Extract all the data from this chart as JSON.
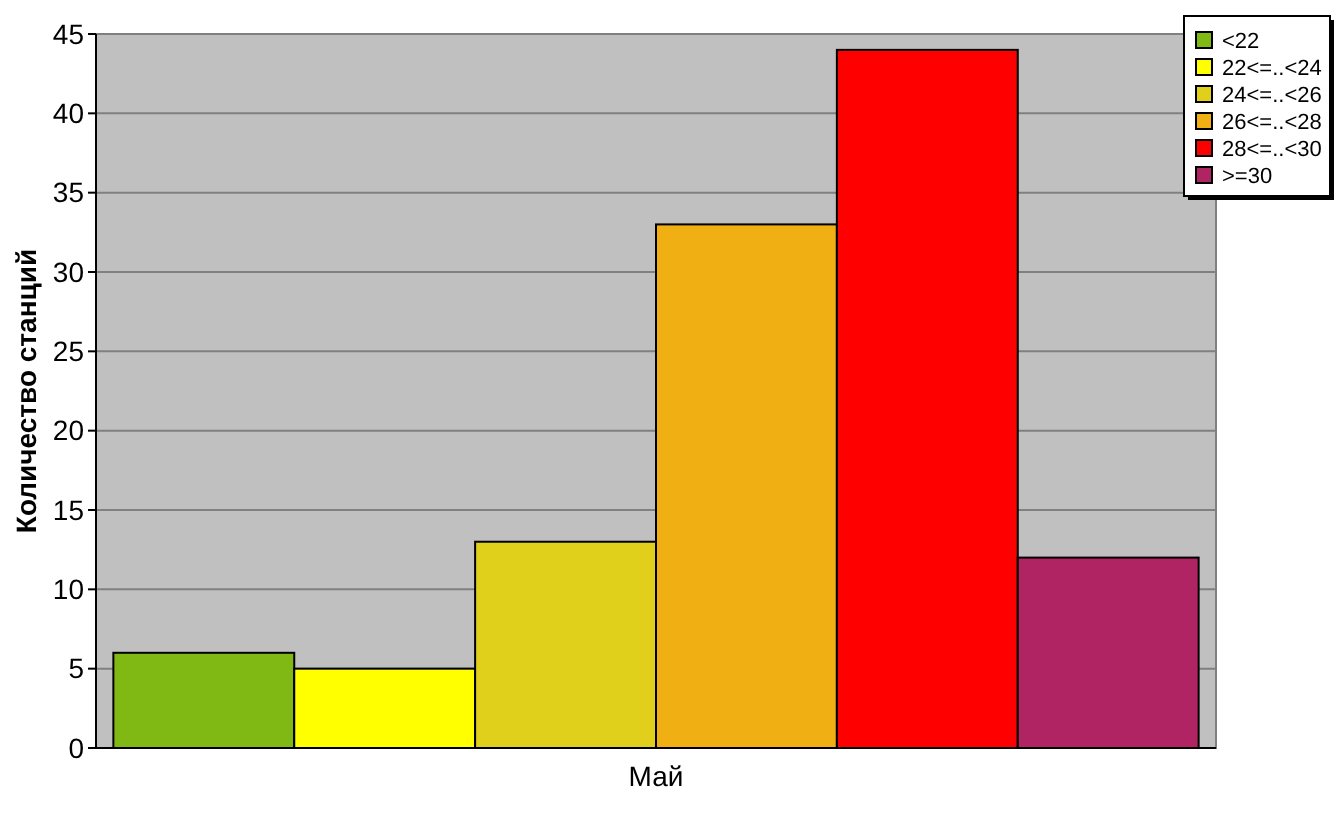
{
  "chart_data": {
    "type": "bar",
    "ylabel": "Количество станций",
    "categories": [
      "Май"
    ],
    "series": [
      {
        "name": "<22",
        "color": "#80b814",
        "values": [
          6
        ]
      },
      {
        "name": "22<=..<24",
        "color": "#ffff00",
        "values": [
          5
        ]
      },
      {
        "name": "24<=..<26",
        "color": "#e0d01c",
        "values": [
          13
        ]
      },
      {
        "name": "26<=..<28",
        "color": "#f0b014",
        "values": [
          33
        ]
      },
      {
        "name": "28<=..<30",
        "color": "#ff0000",
        "values": [
          44
        ]
      },
      {
        "name": ">=30",
        "color": "#b02464",
        "values": [
          12
        ]
      }
    ],
    "ylim": [
      0,
      45
    ],
    "yticks": [
      0,
      5,
      10,
      15,
      20,
      25,
      30,
      35,
      40,
      45
    ],
    "grid": "y",
    "legend": "top right"
  }
}
